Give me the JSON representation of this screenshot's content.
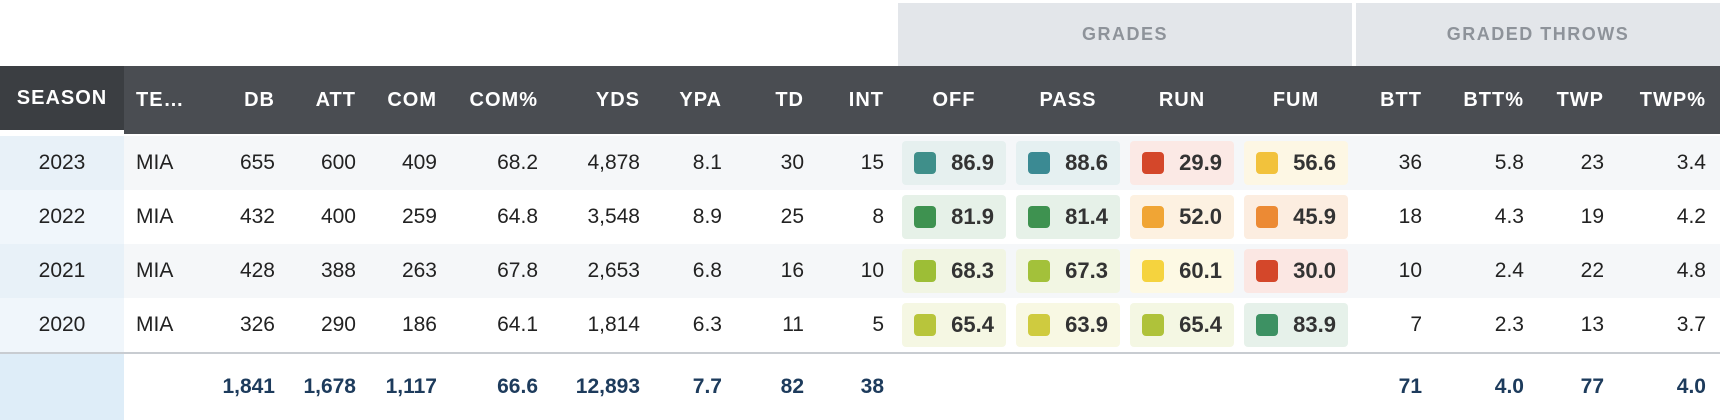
{
  "groups": [
    {
      "key": "grades",
      "label": "GRADES"
    },
    {
      "key": "graded_throws",
      "label": "GRADED THROWS"
    }
  ],
  "columns": [
    {
      "key": "season",
      "label": "SEASON"
    },
    {
      "key": "team",
      "label": "TE…"
    },
    {
      "key": "db",
      "label": "DB"
    },
    {
      "key": "att",
      "label": "ATT"
    },
    {
      "key": "com",
      "label": "COM"
    },
    {
      "key": "com_pct",
      "label": "COM%"
    },
    {
      "key": "yds",
      "label": "YDS"
    },
    {
      "key": "ypa",
      "label": "YPA"
    },
    {
      "key": "td",
      "label": "TD"
    },
    {
      "key": "int",
      "label": "INT"
    },
    {
      "key": "off",
      "label": "OFF"
    },
    {
      "key": "pass",
      "label": "PASS"
    },
    {
      "key": "run",
      "label": "RUN"
    },
    {
      "key": "fum",
      "label": "FUM"
    },
    {
      "key": "btt",
      "label": "BTT"
    },
    {
      "key": "btt_pct",
      "label": "BTT%"
    },
    {
      "key": "twp",
      "label": "TWP"
    },
    {
      "key": "twp_pct",
      "label": "TWP%"
    }
  ],
  "rows": [
    {
      "season": "2023",
      "team": "MIA",
      "db": "655",
      "att": "600",
      "com": "409",
      "com_pct": "68.2",
      "yds": "4,878",
      "ypa": "8.1",
      "td": "30",
      "int": "15",
      "grades": [
        {
          "value": "86.9",
          "color": "#3f8f8a",
          "bg": "#e6f0ef"
        },
        {
          "value": "88.6",
          "color": "#3b8a93",
          "bg": "#e5f0f1"
        },
        {
          "value": "29.9",
          "color": "#d4472a",
          "bg": "#fbe9e5"
        },
        {
          "value": "56.6",
          "color": "#f2c23c",
          "bg": "#fdf7e4"
        }
      ],
      "btt": "36",
      "btt_pct": "5.8",
      "twp": "23",
      "twp_pct": "3.4"
    },
    {
      "season": "2022",
      "team": "MIA",
      "db": "432",
      "att": "400",
      "com": "259",
      "com_pct": "64.8",
      "yds": "3,548",
      "ypa": "8.9",
      "td": "25",
      "int": "8",
      "grades": [
        {
          "value": "81.9",
          "color": "#3e9250",
          "bg": "#e6f1e8"
        },
        {
          "value": "81.4",
          "color": "#3e9250",
          "bg": "#e6f1e8"
        },
        {
          "value": "52.0",
          "color": "#f0a535",
          "bg": "#fdf1e1"
        },
        {
          "value": "45.9",
          "color": "#ec8a34",
          "bg": "#fcede0"
        }
      ],
      "btt": "18",
      "btt_pct": "4.3",
      "twp": "19",
      "twp_pct": "4.2"
    },
    {
      "season": "2021",
      "team": "MIA",
      "db": "428",
      "att": "388",
      "com": "263",
      "com_pct": "67.8",
      "yds": "2,653",
      "ypa": "6.8",
      "td": "16",
      "int": "10",
      "grades": [
        {
          "value": "68.3",
          "color": "#9dbe36",
          "bg": "#f1f5e3"
        },
        {
          "value": "67.3",
          "color": "#a3c13a",
          "bg": "#f2f6e3"
        },
        {
          "value": "60.1",
          "color": "#f5d33e",
          "bg": "#fdf9e4"
        },
        {
          "value": "30.0",
          "color": "#d4472a",
          "bg": "#fbe7e3"
        }
      ],
      "btt": "10",
      "btt_pct": "2.4",
      "twp": "22",
      "twp_pct": "4.8"
    },
    {
      "season": "2020",
      "team": "MIA",
      "db": "326",
      "att": "290",
      "com": "186",
      "com_pct": "64.1",
      "yds": "1,814",
      "ypa": "6.3",
      "td": "11",
      "int": "5",
      "grades": [
        {
          "value": "65.4",
          "color": "#b8c53b",
          "bg": "#f5f7e3"
        },
        {
          "value": "63.9",
          "color": "#cfcb3f",
          "bg": "#f8f8e3"
        },
        {
          "value": "65.4",
          "color": "#afc23a",
          "bg": "#f4f7e3"
        },
        {
          "value": "83.9",
          "color": "#3d9163",
          "bg": "#e6f1ea"
        }
      ],
      "btt": "7",
      "btt_pct": "2.3",
      "twp": "13",
      "twp_pct": "3.7"
    }
  ],
  "totals": {
    "season": "",
    "team": "",
    "db": "1,841",
    "att": "1,678",
    "com": "1,117",
    "com_pct": "66.6",
    "yds": "12,893",
    "ypa": "7.7",
    "td": "82",
    "int": "38",
    "btt": "71",
    "btt_pct": "4.0",
    "twp": "77",
    "twp_pct": "4.0"
  }
}
